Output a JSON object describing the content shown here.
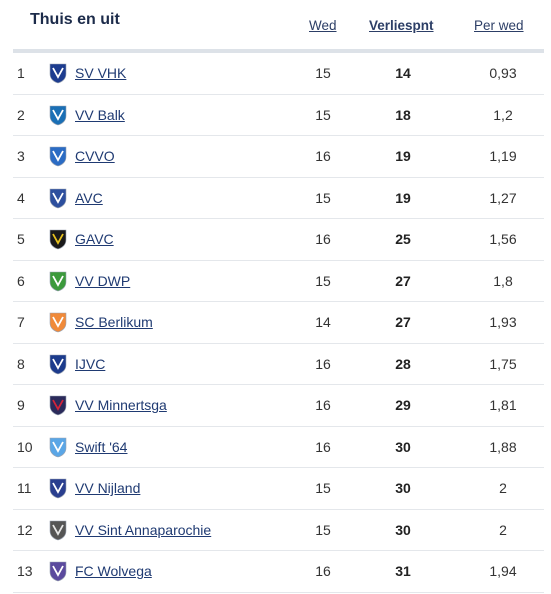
{
  "header": {
    "title": "Thuis en uit",
    "columns": {
      "played": "Wed",
      "lost": "Verliespnt",
      "per_match": "Per wed"
    }
  },
  "rows": [
    {
      "rank": "1",
      "team": "SV VHK",
      "played": "15",
      "lost": "14",
      "per_match": "0,93",
      "logo": {
        "name": "sv-vhk-logo-icon",
        "color": "#1d3c8f",
        "accent": "#ffffff"
      }
    },
    {
      "rank": "2",
      "team": "VV Balk",
      "played": "15",
      "lost": "18",
      "per_match": "1,2",
      "logo": {
        "name": "vv-balk-logo-icon",
        "color": "#1a6fb5",
        "accent": "#ffffff"
      }
    },
    {
      "rank": "3",
      "team": "CVVO",
      "played": "16",
      "lost": "19",
      "per_match": "1,19",
      "logo": {
        "name": "cvvo-logo-icon",
        "color": "#2b6cc4",
        "accent": "#ffffff"
      }
    },
    {
      "rank": "4",
      "team": "AVC",
      "played": "15",
      "lost": "19",
      "per_match": "1,27",
      "logo": {
        "name": "avc-logo-icon",
        "color": "#2d4f9e",
        "accent": "#ffffff"
      }
    },
    {
      "rank": "5",
      "team": "GAVC",
      "played": "16",
      "lost": "25",
      "per_match": "1,56",
      "logo": {
        "name": "gavc-logo-icon",
        "color": "#1a1a1a",
        "accent": "#e7c21e"
      }
    },
    {
      "rank": "6",
      "team": "VV DWP",
      "played": "15",
      "lost": "27",
      "per_match": "1,8",
      "logo": {
        "name": "vv-dwp-logo-icon",
        "color": "#3c9a3c",
        "accent": "#ffffff"
      }
    },
    {
      "rank": "7",
      "team": "SC Berlikum",
      "played": "14",
      "lost": "27",
      "per_match": "1,93",
      "logo": {
        "name": "sc-berlikum-logo-icon",
        "color": "#f08a3a",
        "accent": "#ffffff"
      }
    },
    {
      "rank": "8",
      "team": "IJVC",
      "played": "16",
      "lost": "28",
      "per_match": "1,75",
      "logo": {
        "name": "ijvc-logo-icon",
        "color": "#1c3b8c",
        "accent": "#ffffff"
      }
    },
    {
      "rank": "9",
      "team": "VV Minnertsga",
      "played": "16",
      "lost": "29",
      "per_match": "1,81",
      "logo": {
        "name": "vv-minnertsga-logo-icon",
        "color": "#2a2a5a",
        "accent": "#d4243a"
      }
    },
    {
      "rank": "10",
      "team": "Swift '64",
      "played": "16",
      "lost": "30",
      "per_match": "1,88",
      "logo": {
        "name": "swift-64-logo-icon",
        "color": "#5aa6e6",
        "accent": "#ffffff"
      }
    },
    {
      "rank": "11",
      "team": "VV Nijland",
      "played": "15",
      "lost": "30",
      "per_match": "2",
      "logo": {
        "name": "vv-nijland-logo-icon",
        "color": "#2a3f8f",
        "accent": "#ffffff"
      }
    },
    {
      "rank": "12",
      "team": "VV Sint Annaparochie",
      "played": "15",
      "lost": "30",
      "per_match": "2",
      "logo": {
        "name": "vv-sint-annaparochie-logo-icon",
        "color": "#555555",
        "accent": "#e6e6e6"
      }
    },
    {
      "rank": "13",
      "team": "FC Wolvega",
      "played": "16",
      "lost": "31",
      "per_match": "1,94",
      "logo": {
        "name": "fc-wolvega-logo-icon",
        "color": "#5b4a9e",
        "accent": "#ffffff"
      }
    }
  ]
}
